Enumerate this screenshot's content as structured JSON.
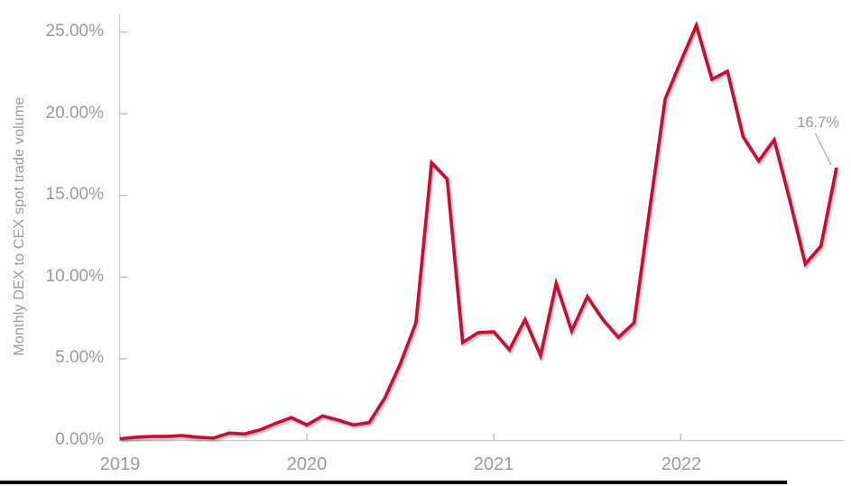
{
  "chart_data": {
    "type": "line",
    "title": "",
    "xlabel": "",
    "ylabel": "Monthly DEX to CEX spot trade volume",
    "x_tick_labels": [
      "2019",
      "2020",
      "2021",
      "2022"
    ],
    "y_tick_labels": [
      "0.00%",
      "5.00%",
      "10.00%",
      "15.00%",
      "20.00%",
      "25.00%"
    ],
    "y_tick_values": [
      0,
      5,
      10,
      15,
      20,
      25
    ],
    "ylim": [
      0,
      26.5
    ],
    "grid": "off",
    "legend": "none",
    "annotation": {
      "text": "16.7%",
      "points_to": "2022-11"
    },
    "colors": {
      "line": "#C90A32",
      "axis": "#C9C9C9",
      "tick": "#B5B5B5",
      "label": "#9B9B9B",
      "leader_line": "#ABABAB"
    },
    "x": [
      "2019-01",
      "2019-02",
      "2019-03",
      "2019-04",
      "2019-05",
      "2019-06",
      "2019-07",
      "2019-08",
      "2019-09",
      "2019-10",
      "2019-11",
      "2019-12",
      "2020-01",
      "2020-02",
      "2020-03",
      "2020-04",
      "2020-05",
      "2020-06",
      "2020-07",
      "2020-08",
      "2020-09",
      "2020-10",
      "2020-11",
      "2020-12",
      "2021-01",
      "2021-02",
      "2021-03",
      "2021-04",
      "2021-05",
      "2021-06",
      "2021-07",
      "2021-08",
      "2021-09",
      "2021-10",
      "2021-11",
      "2021-12",
      "2022-01",
      "2022-02",
      "2022-03",
      "2022-04",
      "2022-05",
      "2022-06",
      "2022-07",
      "2022-08",
      "2022-09",
      "2022-10",
      "2022-11"
    ],
    "series": [
      {
        "name": "Monthly DEX to CEX spot trade volume (%)",
        "values": [
          0.1,
          0.2,
          0.25,
          0.25,
          0.3,
          0.2,
          0.15,
          0.45,
          0.4,
          0.65,
          1.05,
          1.4,
          0.95,
          1.5,
          1.25,
          0.95,
          1.1,
          2.6,
          4.7,
          7.2,
          17.0,
          16.0,
          6.0,
          6.6,
          6.65,
          5.55,
          7.4,
          5.2,
          9.6,
          6.7,
          8.8,
          7.4,
          6.3,
          7.2,
          14.1,
          20.9,
          23.2,
          25.4,
          22.1,
          22.6,
          18.6,
          17.1,
          18.4,
          14.7,
          10.8,
          11.9,
          16.7
        ]
      }
    ]
  }
}
